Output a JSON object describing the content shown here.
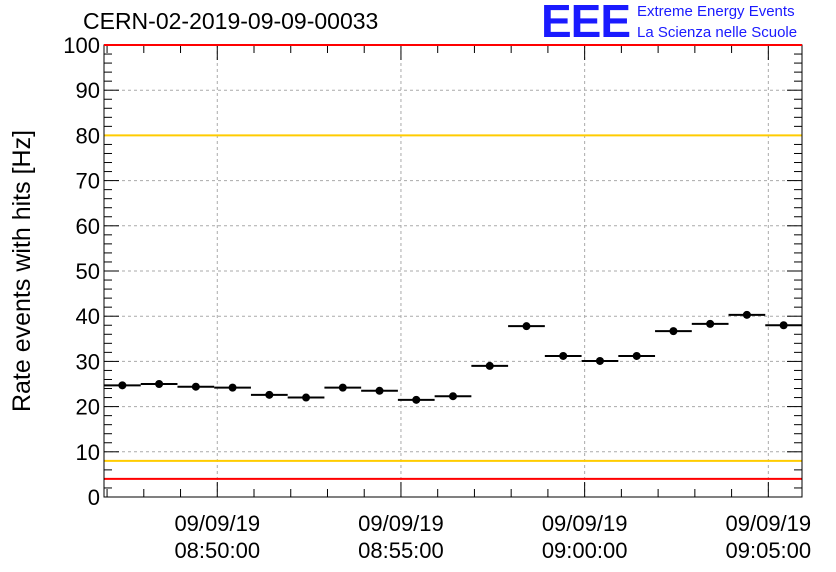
{
  "title": "CERN-02-2019-09-09-00033",
  "logo": {
    "mark": "EEE",
    "line1": "Extreme Energy Events",
    "line2": "La Scienza nelle Scuole",
    "color": "#1a1aff"
  },
  "chart_data": {
    "type": "scatter",
    "title": "CERN-02-2019-09-09-00033",
    "xlabel": "",
    "ylabel": "Rate events with hits [Hz]",
    "ylim": [
      0,
      100
    ],
    "xlim": [
      "2019-09-09 08:46:55",
      "2019-09-09 09:05:55"
    ],
    "x_unit": "time",
    "grid": true,
    "yticks": [
      0,
      10,
      20,
      30,
      40,
      50,
      60,
      70,
      80,
      90,
      100
    ],
    "xticks": [
      {
        "time": "2019-09-09 08:50:00",
        "date_label": "09/09/19",
        "time_label": "08:50:00"
      },
      {
        "time": "2019-09-09 08:55:00",
        "date_label": "09/09/19",
        "time_label": "08:55:00"
      },
      {
        "time": "2019-09-09 09:00:00",
        "date_label": "09/09/19",
        "time_label": "09:00:00"
      },
      {
        "time": "2019-09-09 09:05:00",
        "date_label": "09/09/19",
        "time_label": "09:05:00"
      }
    ],
    "bin_width_seconds": 60,
    "series": [
      {
        "points": [
          {
            "x": "2019-09-09 08:47:25",
            "y": 24.7
          },
          {
            "x": "2019-09-09 08:48:25",
            "y": 25.0
          },
          {
            "x": "2019-09-09 08:49:25",
            "y": 24.4
          },
          {
            "x": "2019-09-09 08:50:25",
            "y": 24.2
          },
          {
            "x": "2019-09-09 08:51:25",
            "y": 22.6
          },
          {
            "x": "2019-09-09 08:52:25",
            "y": 22.0
          },
          {
            "x": "2019-09-09 08:53:25",
            "y": 24.2
          },
          {
            "x": "2019-09-09 08:54:25",
            "y": 23.5
          },
          {
            "x": "2019-09-09 08:55:25",
            "y": 21.5
          },
          {
            "x": "2019-09-09 08:56:25",
            "y": 22.3
          },
          {
            "x": "2019-09-09 08:57:25",
            "y": 29.0
          },
          {
            "x": "2019-09-09 08:58:25",
            "y": 37.8
          },
          {
            "x": "2019-09-09 08:59:25",
            "y": 31.2
          },
          {
            "x": "2019-09-09 09:00:25",
            "y": 30.1
          },
          {
            "x": "2019-09-09 09:01:25",
            "y": 31.2
          },
          {
            "x": "2019-09-09 09:02:25",
            "y": 36.7
          },
          {
            "x": "2019-09-09 09:03:25",
            "y": 38.3
          },
          {
            "x": "2019-09-09 09:04:25",
            "y": 40.3
          },
          {
            "x": "2019-09-09 09:05:25",
            "y": 38.0
          }
        ]
      }
    ],
    "reference_lines": [
      {
        "y": 100,
        "color": "#ff0000"
      },
      {
        "y": 80,
        "color": "#ffcc00"
      },
      {
        "y": 8,
        "color": "#ffcc00"
      },
      {
        "y": 4,
        "color": "#ff0000"
      }
    ]
  }
}
